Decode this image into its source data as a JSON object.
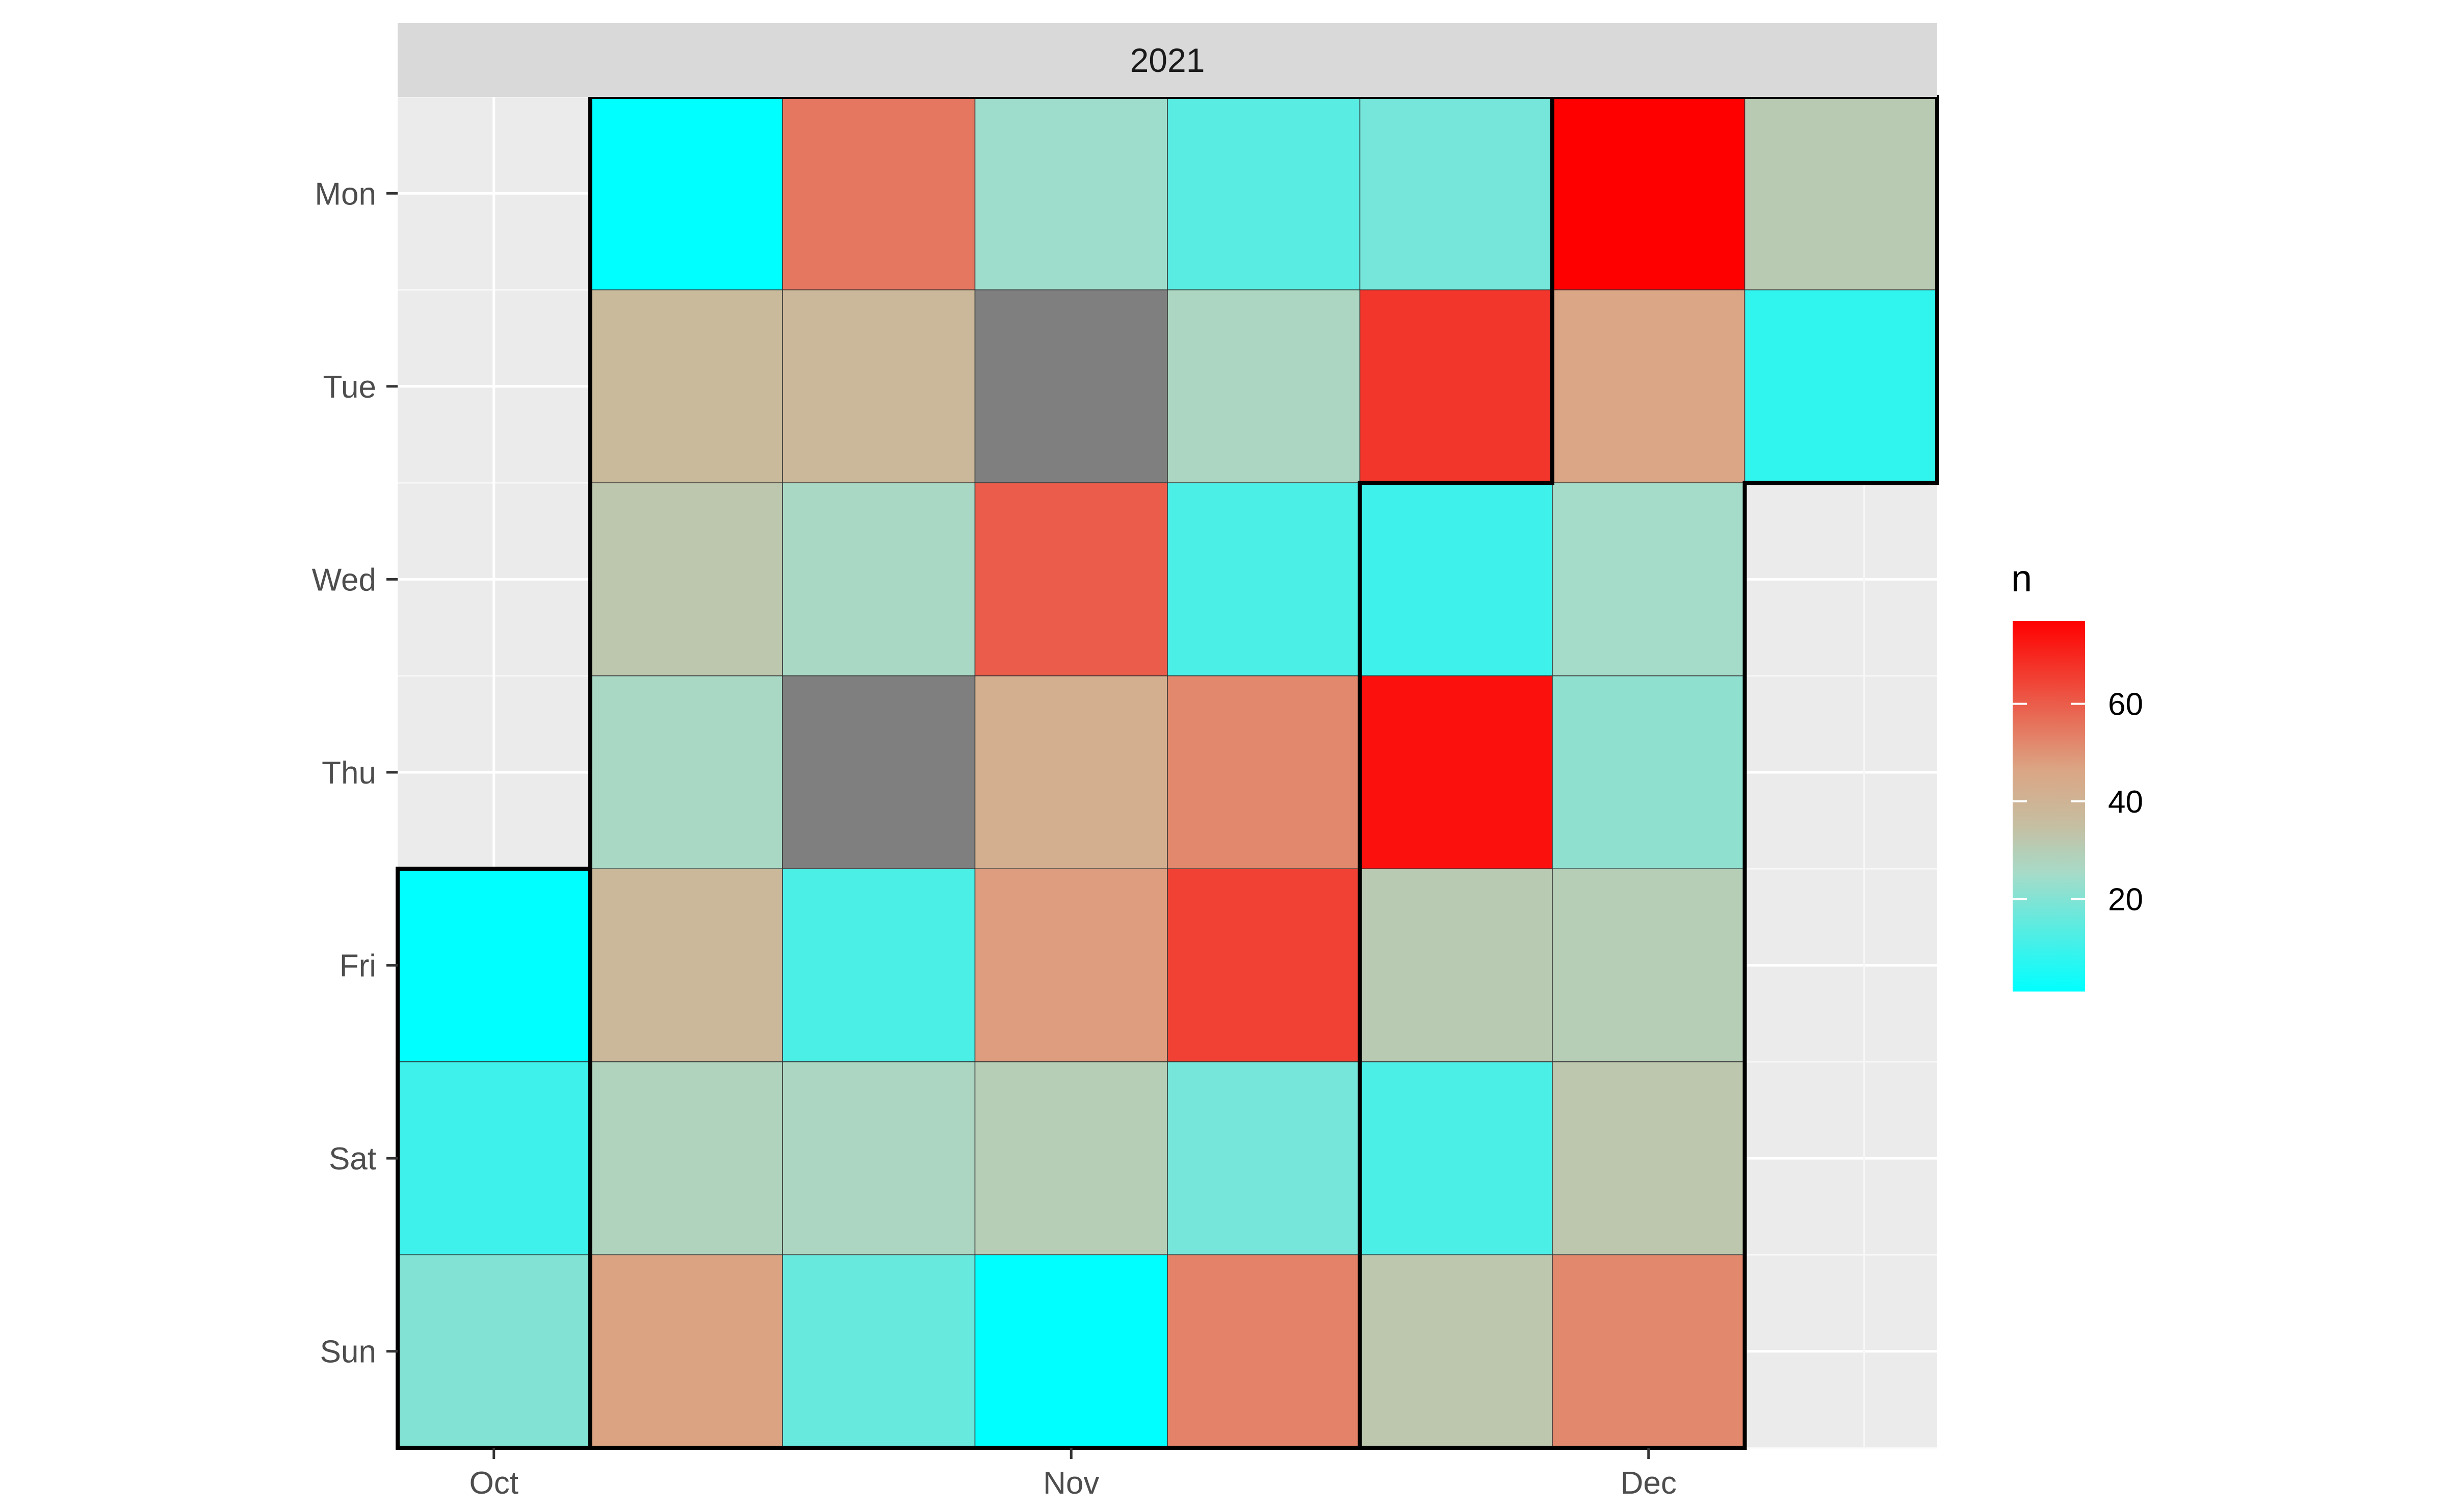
{
  "chart_data": {
    "type": "heatmap",
    "title": "",
    "xlabel": "",
    "ylabel": "",
    "facet": "2021",
    "weekdays": [
      "Mon",
      "Tue",
      "Wed",
      "Thu",
      "Fri",
      "Sat",
      "Sun"
    ],
    "x_ticks": [
      {
        "label": "Oct",
        "week": 0
      },
      {
        "label": "Nov",
        "week": 3
      },
      {
        "label": "Dec",
        "week": 6
      }
    ],
    "weeks": 8,
    "cells": [
      [
        null,
        1,
        55,
        24,
        14,
        18,
        77,
        31
      ],
      [
        null,
        37,
        38,
        null,
        27,
        67,
        46,
        8
      ],
      [
        null,
        32,
        26,
        60,
        12,
        10,
        25,
        null
      ],
      [
        null,
        26,
        null,
        42,
        52,
        74,
        22,
        null
      ],
      [
        1,
        38,
        12,
        48,
        65,
        31,
        30,
        null
      ],
      [
        10,
        28,
        27,
        30,
        18,
        12,
        32,
        null
      ],
      [
        20,
        47,
        16,
        1,
        53,
        32,
        52,
        null
      ]
    ],
    "missing_color": "#7f7f7f",
    "color_scale": {
      "low_color": "#00ffff",
      "high_color": "#ff0000",
      "min": 1,
      "max": 77,
      "stops": [
        [
          0,
          "#00ffff"
        ],
        [
          0.32,
          "#a7dbc8"
        ],
        [
          0.45,
          "#c6bea1"
        ],
        [
          0.6,
          "#dba584"
        ],
        [
          1,
          "#ff0000"
        ]
      ]
    },
    "legend": {
      "title": "n",
      "ticks": [
        20,
        40,
        60
      ],
      "position": "right"
    },
    "month_boundaries": true
  }
}
